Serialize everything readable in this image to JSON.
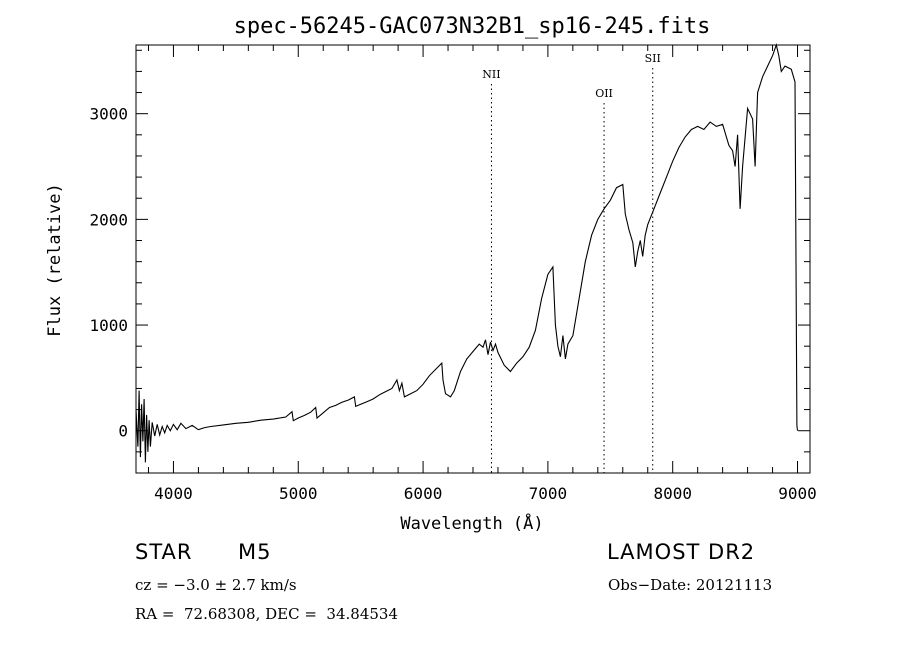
{
  "chart_data": {
    "type": "line",
    "title": "spec-56245-GAC073N32B1_sp16-245.fits",
    "xlabel": "Wavelength (Å)",
    "ylabel": "Flux (relative)",
    "xlim": [
      3700,
      9100
    ],
    "ylim": [
      -400,
      3650
    ],
    "x_ticks": [
      4000,
      5000,
      6000,
      7000,
      8000,
      9000
    ],
    "x_tick_labels": [
      "4000",
      "5000",
      "6000",
      "7000",
      "8000",
      "9000"
    ],
    "y_ticks": [
      0,
      1000,
      2000,
      3000
    ],
    "y_tick_labels": [
      "0",
      "1000",
      "2000",
      "3000"
    ],
    "grid": false,
    "legend": "none",
    "line_color": "#000000",
    "annotations": [
      {
        "text": "NII",
        "x": 6548
      },
      {
        "text": "OII",
        "x": 7450
      },
      {
        "text": "SII",
        "x": 7840
      }
    ],
    "series": [
      {
        "points": [
          [
            3700,
            200
          ],
          [
            3715,
            -150
          ],
          [
            3725,
            380
          ],
          [
            3735,
            -250
          ],
          [
            3745,
            250
          ],
          [
            3755,
            -100
          ],
          [
            3765,
            300
          ],
          [
            3775,
            -300
          ],
          [
            3785,
            150
          ],
          [
            3795,
            -200
          ],
          [
            3805,
            100
          ],
          [
            3815,
            -150
          ],
          [
            3830,
            80
          ],
          [
            3850,
            -50
          ],
          [
            3870,
            60
          ],
          [
            3890,
            -40
          ],
          [
            3910,
            40
          ],
          [
            3930,
            -20
          ],
          [
            3950,
            50
          ],
          [
            3975,
            0
          ],
          [
            4000,
            60
          ],
          [
            4030,
            10
          ],
          [
            4060,
            70
          ],
          [
            4100,
            20
          ],
          [
            4150,
            50
          ],
          [
            4200,
            10
          ],
          [
            4250,
            30
          ],
          [
            4300,
            40
          ],
          [
            4400,
            55
          ],
          [
            4500,
            70
          ],
          [
            4600,
            80
          ],
          [
            4700,
            100
          ],
          [
            4800,
            110
          ],
          [
            4900,
            130
          ],
          [
            4950,
            180
          ],
          [
            4960,
            95
          ],
          [
            5000,
            120
          ],
          [
            5050,
            145
          ],
          [
            5100,
            175
          ],
          [
            5140,
            220
          ],
          [
            5150,
            120
          ],
          [
            5200,
            170
          ],
          [
            5250,
            220
          ],
          [
            5300,
            240
          ],
          [
            5350,
            270
          ],
          [
            5400,
            290
          ],
          [
            5450,
            320
          ],
          [
            5460,
            230
          ],
          [
            5500,
            250
          ],
          [
            5550,
            275
          ],
          [
            5600,
            300
          ],
          [
            5650,
            340
          ],
          [
            5700,
            370
          ],
          [
            5750,
            400
          ],
          [
            5790,
            480
          ],
          [
            5810,
            380
          ],
          [
            5830,
            450
          ],
          [
            5850,
            320
          ],
          [
            5900,
            350
          ],
          [
            5950,
            380
          ],
          [
            6000,
            440
          ],
          [
            6050,
            520
          ],
          [
            6100,
            580
          ],
          [
            6150,
            640
          ],
          [
            6160,
            480
          ],
          [
            6180,
            350
          ],
          [
            6220,
            320
          ],
          [
            6250,
            380
          ],
          [
            6300,
            560
          ],
          [
            6350,
            680
          ],
          [
            6400,
            750
          ],
          [
            6450,
            820
          ],
          [
            6480,
            790
          ],
          [
            6500,
            860
          ],
          [
            6520,
            720
          ],
          [
            6540,
            840
          ],
          [
            6560,
            760
          ],
          [
            6580,
            820
          ],
          [
            6600,
            740
          ],
          [
            6650,
            620
          ],
          [
            6700,
            560
          ],
          [
            6750,
            640
          ],
          [
            6800,
            700
          ],
          [
            6850,
            790
          ],
          [
            6900,
            950
          ],
          [
            6950,
            1250
          ],
          [
            7000,
            1480
          ],
          [
            7040,
            1550
          ],
          [
            7060,
            1000
          ],
          [
            7080,
            800
          ],
          [
            7100,
            700
          ],
          [
            7120,
            900
          ],
          [
            7140,
            680
          ],
          [
            7160,
            820
          ],
          [
            7200,
            900
          ],
          [
            7250,
            1250
          ],
          [
            7300,
            1600
          ],
          [
            7350,
            1850
          ],
          [
            7400,
            2000
          ],
          [
            7450,
            2100
          ],
          [
            7500,
            2180
          ],
          [
            7550,
            2300
          ],
          [
            7600,
            2330
          ],
          [
            7620,
            2050
          ],
          [
            7650,
            1900
          ],
          [
            7680,
            1780
          ],
          [
            7700,
            1550
          ],
          [
            7720,
            1700
          ],
          [
            7740,
            1800
          ],
          [
            7760,
            1650
          ],
          [
            7780,
            1850
          ],
          [
            7800,
            1950
          ],
          [
            7850,
            2100
          ],
          [
            7900,
            2250
          ],
          [
            7950,
            2400
          ],
          [
            8000,
            2550
          ],
          [
            8050,
            2680
          ],
          [
            8100,
            2780
          ],
          [
            8150,
            2850
          ],
          [
            8200,
            2880
          ],
          [
            8250,
            2850
          ],
          [
            8300,
            2920
          ],
          [
            8350,
            2880
          ],
          [
            8400,
            2900
          ],
          [
            8450,
            2700
          ],
          [
            8480,
            2650
          ],
          [
            8500,
            2500
          ],
          [
            8520,
            2800
          ],
          [
            8540,
            2100
          ],
          [
            8560,
            2500
          ],
          [
            8600,
            3050
          ],
          [
            8640,
            2950
          ],
          [
            8660,
            2500
          ],
          [
            8680,
            3200
          ],
          [
            8720,
            3350
          ],
          [
            8760,
            3450
          ],
          [
            8800,
            3550
          ],
          [
            8830,
            3650
          ],
          [
            8850,
            3550
          ],
          [
            8870,
            3400
          ],
          [
            8900,
            3450
          ],
          [
            8950,
            3420
          ],
          [
            8980,
            3300
          ],
          [
            8995,
            50
          ],
          [
            9000,
            0
          ]
        ]
      }
    ]
  },
  "footer": {
    "object_type": "STAR",
    "subclass": "M5",
    "survey": "LAMOST DR2",
    "redshift": "cz = −3.0 ± 2.7 km/s",
    "obs_date": "Obs−Date: 20121113",
    "coords": "RA =  72.68308, DEC =  34.84534"
  }
}
